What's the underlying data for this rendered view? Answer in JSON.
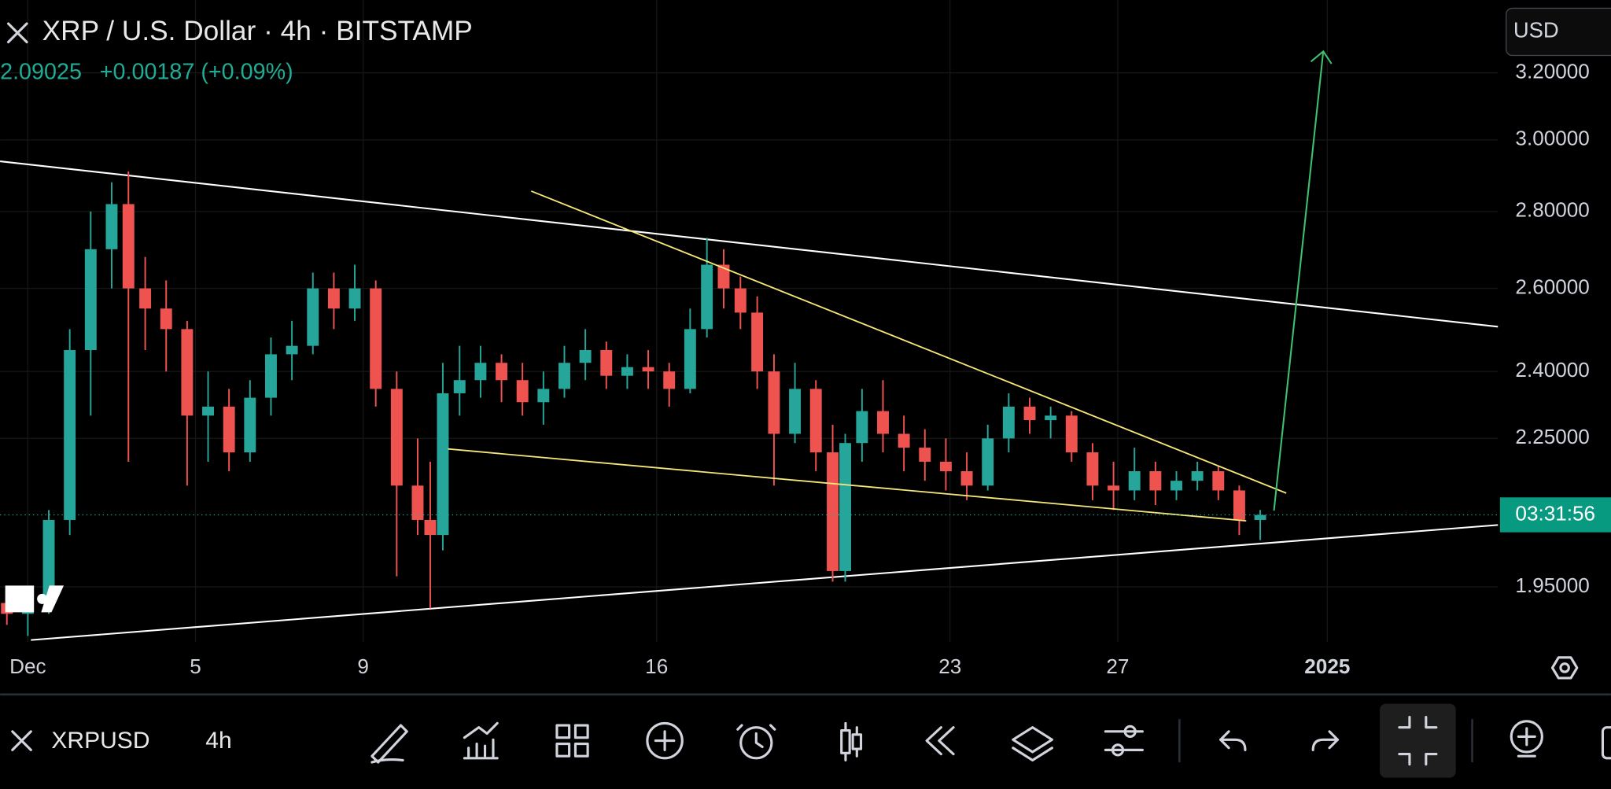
{
  "header": {
    "last_price": "2.09025",
    "change": "+0.00187 (+0.09%)",
    "currency": "USD",
    "countdown": "03:31:56"
  },
  "toolbar": {
    "symbol": "XRPUSD",
    "interval": "4h"
  },
  "chart_data": {
    "type": "candlestick",
    "title": "XRP / U.S. Dollar · 4h · BITSTAMP",
    "log_scale": true,
    "grid": true,
    "up_color": "#26a69a",
    "down_color": "#ef5350",
    "last_price": 2.09025,
    "x": [
      0.5,
      1.0,
      1.5,
      2.0,
      2.5,
      3.0,
      3.4,
      3.8,
      4.3,
      4.8,
      5.3,
      5.8,
      6.3,
      6.8,
      7.3,
      7.8,
      8.3,
      8.8,
      9.3,
      9.8,
      10.3,
      10.6,
      10.9,
      11.3,
      11.8,
      12.3,
      12.8,
      13.3,
      13.8,
      14.3,
      14.8,
      15.3,
      15.8,
      16.3,
      16.8,
      17.2,
      17.6,
      18.0,
      18.4,
      18.8,
      19.3,
      19.8,
      20.2,
      20.5,
      20.9,
      21.4,
      21.9,
      22.4,
      22.9,
      23.4,
      23.9,
      24.4,
      24.9,
      25.4,
      25.9,
      26.4,
      26.9,
      27.4,
      27.9,
      28.4,
      28.9,
      29.4,
      29.9,
      30.4
    ],
    "open": [
      1.92,
      1.9,
      1.93,
      2.08,
      2.45,
      2.7,
      2.82,
      2.6,
      2.55,
      2.5,
      2.3,
      2.32,
      2.22,
      2.34,
      2.44,
      2.46,
      2.6,
      2.55,
      2.6,
      2.36,
      2.15,
      2.08,
      2.05,
      2.35,
      2.38,
      2.42,
      2.38,
      2.33,
      2.36,
      2.42,
      2.45,
      2.39,
      2.41,
      2.4,
      2.36,
      2.5,
      2.66,
      2.6,
      2.54,
      2.4,
      2.26,
      2.36,
      2.22,
      1.98,
      2.24,
      2.31,
      2.26,
      2.23,
      2.2,
      2.18,
      2.15,
      2.25,
      2.32,
      2.29,
      2.3,
      2.22,
      2.15,
      2.14,
      2.18,
      2.14,
      2.16,
      2.18,
      2.14,
      2.08
    ],
    "high": [
      1.95,
      1.95,
      2.1,
      2.5,
      2.8,
      2.88,
      2.91,
      2.68,
      2.62,
      2.52,
      2.4,
      2.36,
      2.38,
      2.48,
      2.52,
      2.64,
      2.64,
      2.66,
      2.62,
      2.4,
      2.25,
      2.2,
      2.42,
      2.46,
      2.46,
      2.44,
      2.42,
      2.4,
      2.46,
      2.5,
      2.47,
      2.44,
      2.45,
      2.42,
      2.55,
      2.73,
      2.7,
      2.63,
      2.58,
      2.44,
      2.42,
      2.38,
      2.28,
      2.26,
      2.36,
      2.38,
      2.3,
      2.27,
      2.25,
      2.22,
      2.28,
      2.35,
      2.34,
      2.32,
      2.31,
      2.24,
      2.2,
      2.23,
      2.2,
      2.18,
      2.2,
      2.19,
      2.15,
      2.1
    ],
    "low": [
      1.88,
      1.86,
      1.9,
      2.05,
      2.3,
      2.6,
      2.2,
      2.45,
      2.4,
      2.15,
      2.2,
      2.18,
      2.2,
      2.3,
      2.38,
      2.44,
      2.5,
      2.52,
      2.32,
      1.97,
      2.05,
      1.91,
      2.02,
      2.3,
      2.34,
      2.33,
      2.3,
      2.28,
      2.34,
      2.38,
      2.36,
      2.36,
      2.36,
      2.32,
      2.35,
      2.48,
      2.55,
      2.5,
      2.36,
      2.15,
      2.24,
      2.18,
      1.96,
      1.96,
      2.2,
      2.22,
      2.18,
      2.16,
      2.14,
      2.12,
      2.14,
      2.22,
      2.26,
      2.25,
      2.2,
      2.12,
      2.1,
      2.12,
      2.11,
      2.12,
      2.14,
      2.12,
      2.05,
      2.04
    ],
    "close": [
      1.9,
      1.93,
      2.08,
      2.45,
      2.7,
      2.82,
      2.6,
      2.55,
      2.5,
      2.3,
      2.32,
      2.22,
      2.34,
      2.44,
      2.46,
      2.6,
      2.55,
      2.6,
      2.36,
      2.15,
      2.08,
      2.05,
      2.35,
      2.38,
      2.42,
      2.38,
      2.33,
      2.36,
      2.42,
      2.45,
      2.39,
      2.41,
      2.4,
      2.36,
      2.5,
      2.66,
      2.6,
      2.54,
      2.4,
      2.26,
      2.36,
      2.22,
      1.98,
      2.24,
      2.31,
      2.26,
      2.23,
      2.2,
      2.18,
      2.15,
      2.25,
      2.32,
      2.29,
      2.3,
      2.22,
      2.15,
      2.14,
      2.18,
      2.14,
      2.16,
      2.18,
      2.14,
      2.08,
      2.09
    ],
    "xlim": [
      0.338,
      36.07
    ],
    "xticks": [
      {
        "value": 1,
        "label": "Dec"
      },
      5,
      9,
      16,
      23,
      27,
      {
        "value": 32,
        "label": "2025"
      }
    ],
    "ylim": [
      1.849,
      3.433
    ],
    "yticks": [
      {
        "value": 3.2,
        "label": "3.20000"
      },
      {
        "value": 3.0,
        "label": "3.00000"
      },
      {
        "value": 2.8,
        "label": "2.80000"
      },
      {
        "value": 2.6,
        "label": "2.60000"
      },
      {
        "value": 2.4,
        "label": "2.40000"
      },
      {
        "value": 2.25,
        "label": "2.25000"
      },
      {
        "value": 1.95,
        "label": "1.95000"
      }
    ]
  }
}
